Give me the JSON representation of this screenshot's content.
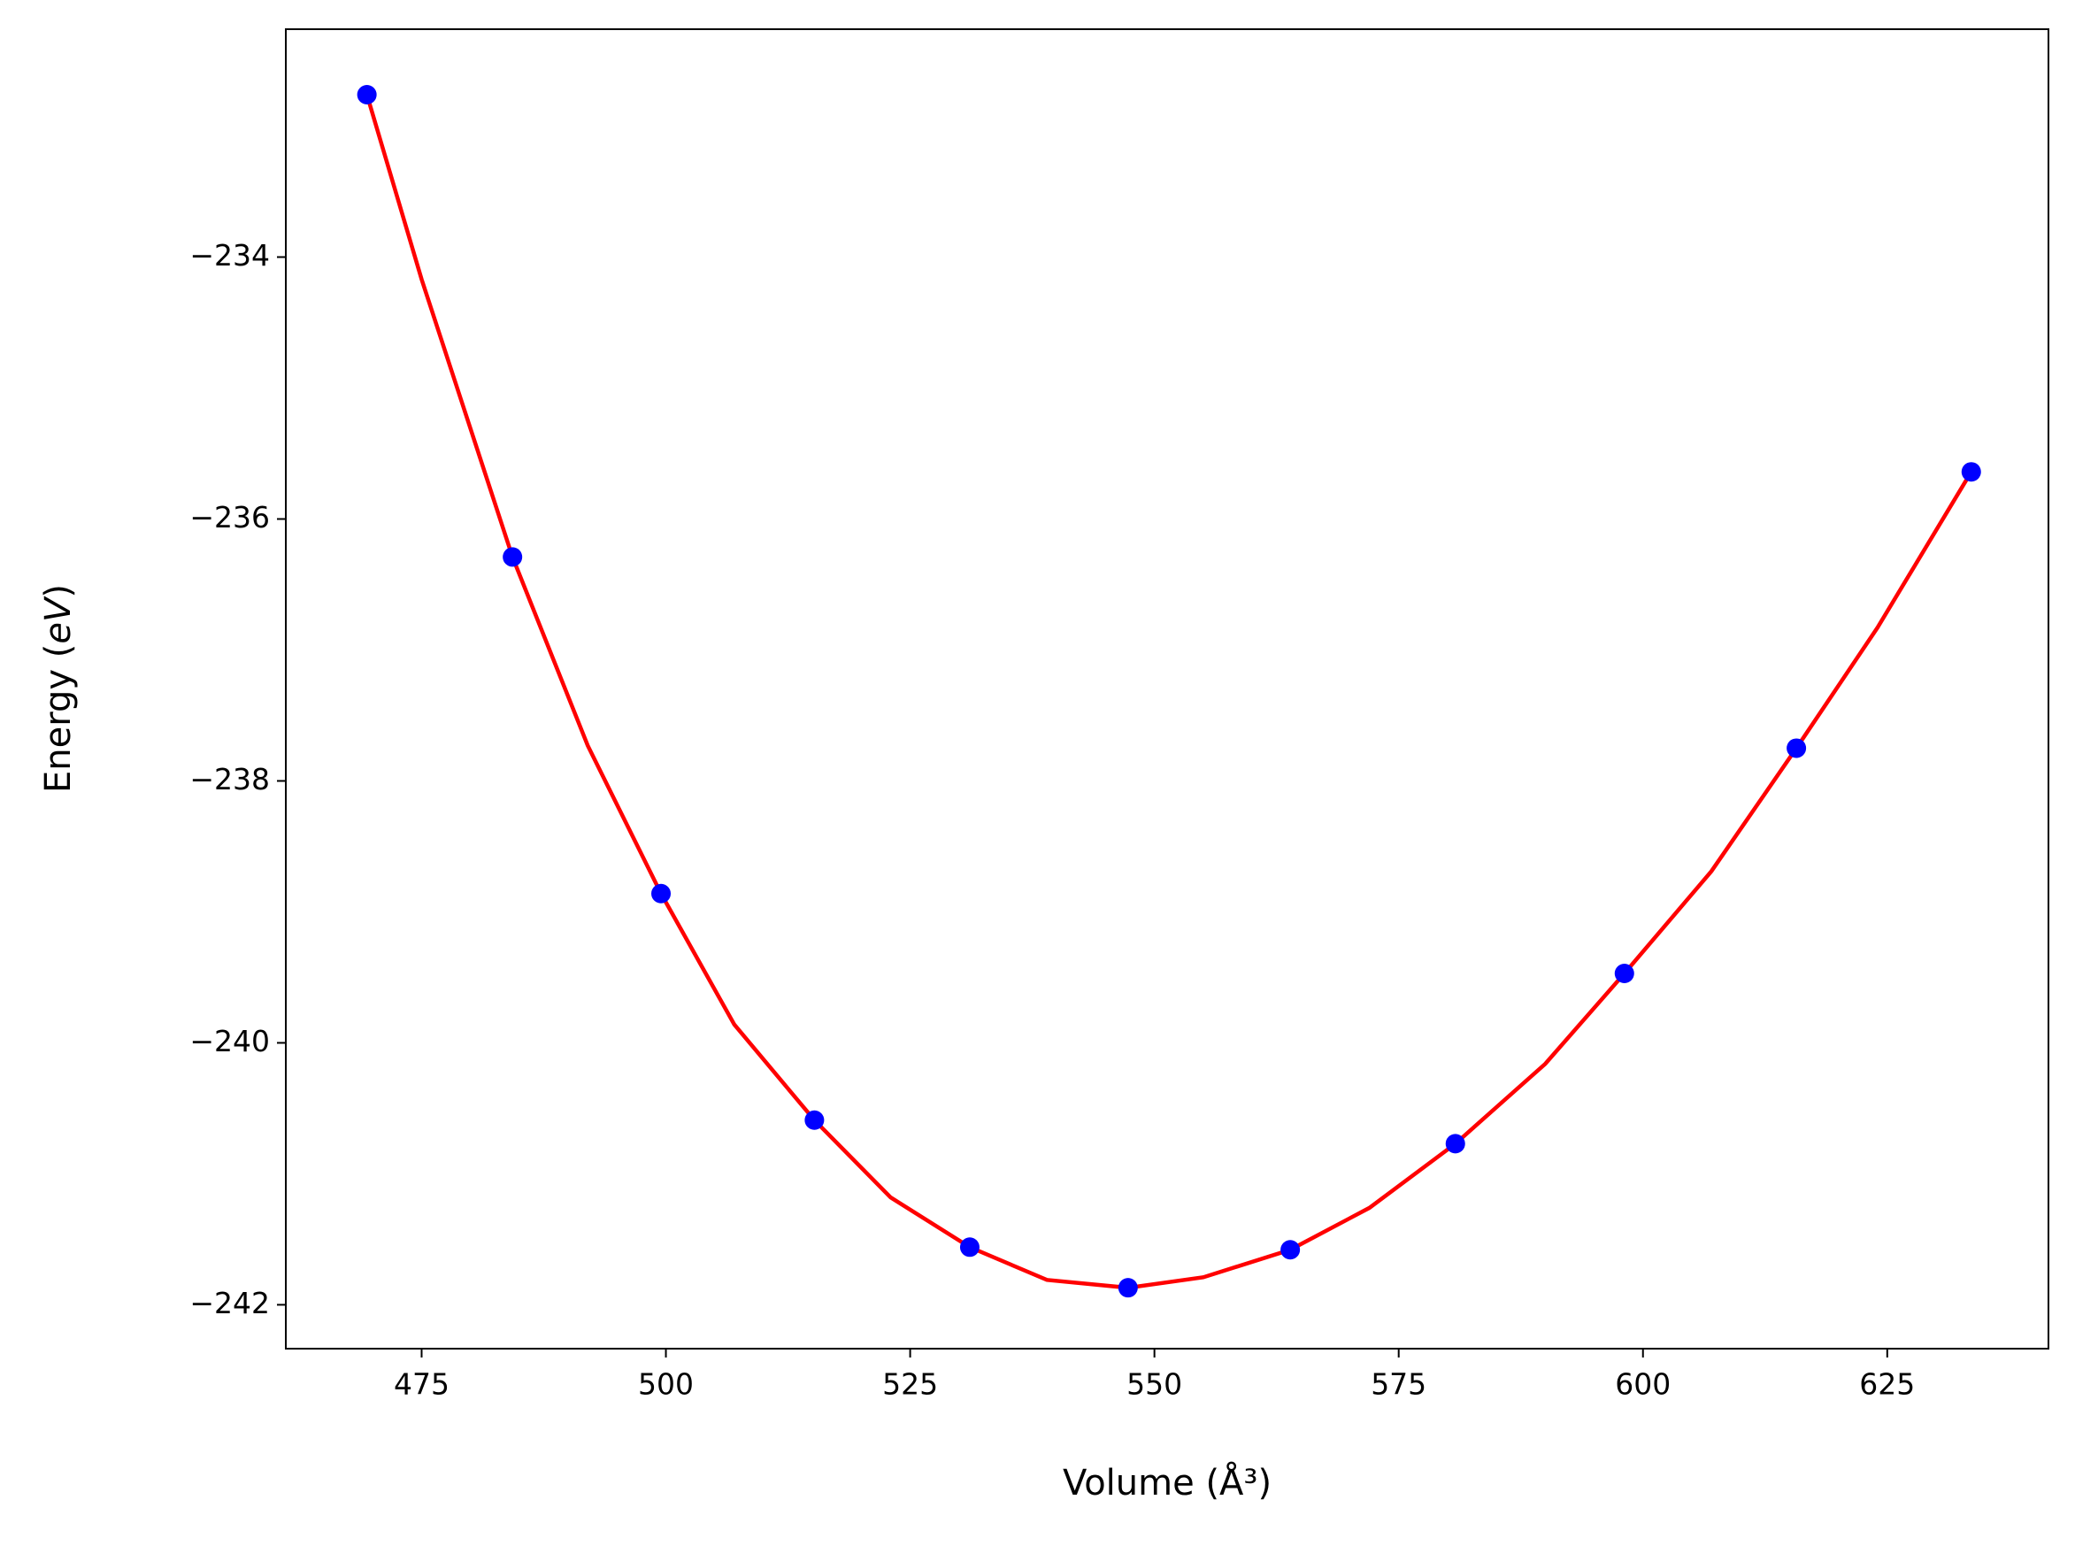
{
  "chart_data": {
    "type": "scatter",
    "x_label": "Volume (Å³)",
    "y_label_parts": [
      "Energy (",
      "eV",
      ")"
    ],
    "xlim": [
      461.1,
      641.5
    ],
    "ylim": [
      -242.335,
      -232.26
    ],
    "xticks": [
      475,
      500,
      525,
      550,
      575,
      600,
      625
    ],
    "yticks": [
      {
        "value": -234,
        "label": "−234"
      },
      {
        "value": -236,
        "label": "−236"
      },
      {
        "value": -238,
        "label": "−238"
      },
      {
        "value": -240,
        "label": "−240"
      },
      {
        "value": -242,
        "label": "−242"
      }
    ],
    "grid": false,
    "series": [
      {
        "style": "line",
        "color": "#ff0000",
        "x": [
          469.4,
          475,
          484.3,
          492,
          499.5,
          507,
          515.2,
          523,
          531.1,
          539,
          547.3,
          555,
          563.9,
          572,
          580.8,
          590,
          598.1,
          607,
          615.7,
          624,
          633.6
        ],
        "values": [
          -232.76,
          -234.17,
          -236.29,
          -237.73,
          -238.86,
          -239.86,
          -240.59,
          -241.18,
          -241.56,
          -241.81,
          -241.87,
          -241.79,
          -241.58,
          -241.26,
          -240.77,
          -240.16,
          -239.47,
          -238.69,
          -237.75,
          -236.83,
          -235.64
        ]
      },
      {
        "style": "markers",
        "color": "#0000ff",
        "x": [
          469.4,
          484.3,
          499.5,
          515.2,
          531.1,
          547.3,
          563.9,
          580.8,
          598.1,
          615.7,
          633.6
        ],
        "values": [
          -232.76,
          -236.29,
          -238.86,
          -240.59,
          -241.56,
          -241.87,
          -241.58,
          -240.77,
          -239.47,
          -237.75,
          -235.64
        ]
      }
    ]
  }
}
